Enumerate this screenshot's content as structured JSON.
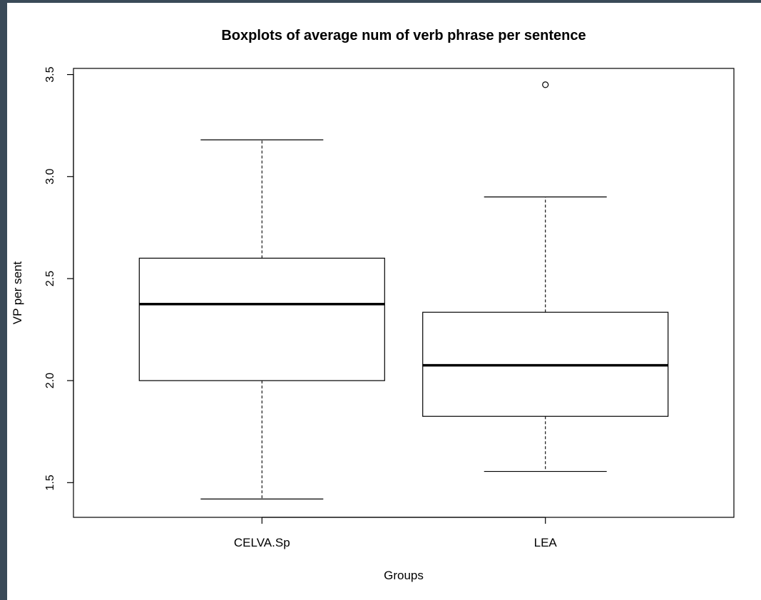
{
  "colors": {
    "frame": "#3a4a58",
    "box_stroke": "#000000",
    "background": "#ffffff"
  },
  "chart_data": {
    "type": "boxplot",
    "title": "Boxplots of average num of verb phrase per sentence",
    "xlabel": "Groups",
    "ylabel": "VP per sent",
    "ylim": [
      1.33,
      3.53
    ],
    "yticks": [
      1.5,
      2.0,
      2.5,
      3.0,
      3.5
    ],
    "ytick_labels": [
      "1.5",
      "2.0",
      "2.5",
      "3.0",
      "3.5"
    ],
    "categories": [
      "CELVA.Sp",
      "LEA"
    ],
    "boxes": [
      {
        "category": "CELVA.Sp",
        "whisker_low": 1.42,
        "q1": 2.0,
        "median": 2.375,
        "q3": 2.6,
        "whisker_high": 3.18,
        "outliers": []
      },
      {
        "category": "LEA",
        "whisker_low": 1.555,
        "q1": 1.825,
        "median": 2.075,
        "q3": 2.335,
        "whisker_high": 2.9,
        "outliers": [
          3.45
        ]
      }
    ]
  }
}
